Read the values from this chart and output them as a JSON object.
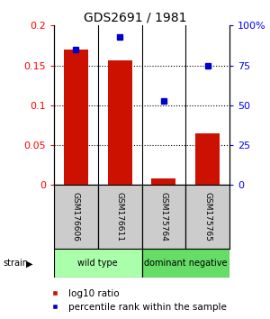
{
  "title": "GDS2691 / 1981",
  "samples": [
    "GSM176606",
    "GSM176611",
    "GSM175764",
    "GSM175765"
  ],
  "log10_ratio": [
    0.17,
    0.156,
    0.008,
    0.065
  ],
  "percentile_rank": [
    85,
    93,
    53,
    75
  ],
  "ylim_left": [
    0,
    0.2
  ],
  "ylim_right": [
    0,
    100
  ],
  "yticks_left": [
    0,
    0.05,
    0.1,
    0.15,
    0.2
  ],
  "ytick_labels_left": [
    "0",
    "0.05",
    "0.1",
    "0.15",
    "0.2"
  ],
  "yticks_right": [
    0,
    25,
    50,
    75,
    100
  ],
  "ytick_labels_right": [
    "0",
    "25",
    "50",
    "75",
    "100%"
  ],
  "grid_lines": [
    0.05,
    0.1,
    0.15
  ],
  "bar_color": "#cc1100",
  "dot_color": "#0000cc",
  "bar_width": 0.55,
  "group_labels": [
    "wild type",
    "dominant negative"
  ],
  "group_colors": [
    "#aaffaa",
    "#66dd66"
  ],
  "legend_bar_label": "log10 ratio",
  "legend_dot_label": "percentile rank within the sample",
  "sample_box_color": "#cccccc",
  "bg_color": "#ffffff",
  "title_fontsize": 10,
  "axis_fontsize": 8,
  "label_fontsize": 6.5,
  "group_fontsize": 7,
  "legend_fontsize": 7.5
}
